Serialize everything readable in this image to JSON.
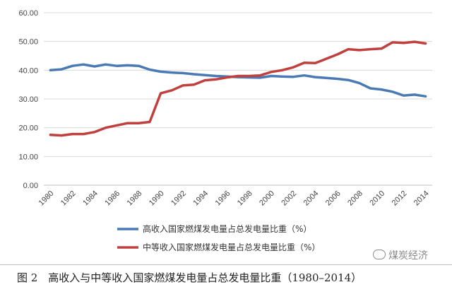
{
  "chart_data": {
    "type": "line",
    "title": "",
    "xlabel": "",
    "ylabel": "",
    "ylim": [
      0,
      60
    ],
    "y_ticks": [
      "0.00",
      "10.00",
      "20.00",
      "30.00",
      "40.00",
      "50.00",
      "60.00"
    ],
    "x": [
      1980,
      1981,
      1982,
      1983,
      1984,
      1985,
      1986,
      1987,
      1988,
      1989,
      1990,
      1991,
      1992,
      1993,
      1994,
      1995,
      1996,
      1997,
      1998,
      1999,
      2000,
      2001,
      2002,
      2003,
      2004,
      2005,
      2006,
      2007,
      2008,
      2009,
      2010,
      2011,
      2012,
      2013,
      2014
    ],
    "x_ticks": [
      "1980",
      "1982",
      "1984",
      "1986",
      "1988",
      "1990",
      "1992",
      "1994",
      "1996",
      "1998",
      "2000",
      "2002",
      "2004",
      "2006",
      "2008",
      "2010",
      "2012",
      "2014"
    ],
    "grid": "horizontal",
    "legend_position": "bottom",
    "series": [
      {
        "name": "高收入国家燃煤发电量占总发电量比重（%）",
        "color": "#4a7ab5",
        "values": [
          40.0,
          40.3,
          41.5,
          42.0,
          41.3,
          42.0,
          41.5,
          41.7,
          41.5,
          40.2,
          39.5,
          39.2,
          39.0,
          38.6,
          38.3,
          38.0,
          37.8,
          37.6,
          37.5,
          37.4,
          38.0,
          37.8,
          37.7,
          38.2,
          37.6,
          37.3,
          37.0,
          36.6,
          35.5,
          33.7,
          33.3,
          32.5,
          31.2,
          31.5,
          30.9
        ]
      },
      {
        "name": "中等收入国家燃煤发电量占总发电量比重（%）",
        "color": "#c0403e",
        "values": [
          17.5,
          17.3,
          17.8,
          17.8,
          18.5,
          20.0,
          20.8,
          21.6,
          21.6,
          22.0,
          32.0,
          33.0,
          34.7,
          35.0,
          36.5,
          36.8,
          37.5,
          38.0,
          38.0,
          38.2,
          39.4,
          40.0,
          41.0,
          42.6,
          42.5,
          44.0,
          45.5,
          47.3,
          47.0,
          47.3,
          47.5,
          49.7,
          49.5,
          49.9,
          49.3
        ]
      }
    ]
  },
  "caption": "图 2　高收入与中等收入国家燃煤发电量占总发电量比重（1980–2014）",
  "watermark": "煤炭经济"
}
